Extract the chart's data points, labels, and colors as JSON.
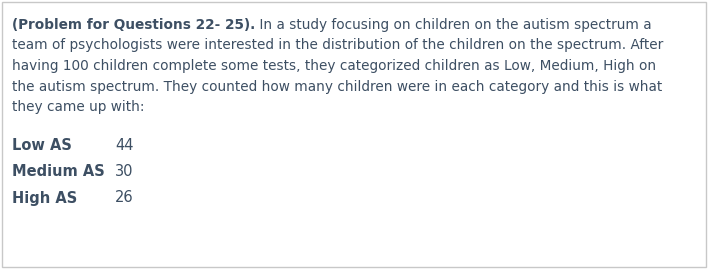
{
  "background_color": "#ffffff",
  "border_color": "#c8c8c8",
  "text_color": "#3d4f63",
  "bold_intro": "(Problem for Questions 22- 25).",
  "paragraph_lines": [
    [
      "bold",
      "(Problem for Questions 22- 25).",
      "normal",
      " In a study focusing on children on the autism spectrum a"
    ],
    [
      "normal",
      "team of psychologists were interested in the distribution of the children on the spectrum. After"
    ],
    [
      "normal",
      "having 100 children complete some tests, they categorized children as Low, Medium, High on"
    ],
    [
      "normal",
      "the autism spectrum. They counted how many children were in each category and this is what"
    ],
    [
      "normal",
      "they came up with:"
    ]
  ],
  "table_rows": [
    {
      "label": "Low AS",
      "value": "44"
    },
    {
      "label": "Medium AS",
      "value": "30"
    },
    {
      "label": "High AS",
      "value": "26"
    }
  ],
  "font_family": "DejaVu Sans",
  "body_fontsize": 9.8,
  "table_fontsize": 10.5,
  "figsize": [
    7.09,
    2.69
  ],
  "dpi": 100
}
